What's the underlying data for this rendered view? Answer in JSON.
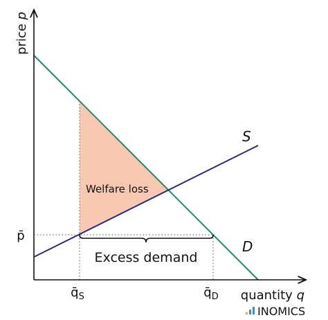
{
  "axes": {
    "y_label": {
      "text": "price",
      "variable": "p"
    },
    "x_label": {
      "text": "quantity",
      "variable": "q"
    }
  },
  "curves": {
    "supply": "S",
    "demand": "D"
  },
  "markers": {
    "price": "p̄",
    "q_s": {
      "symbol": "q̄",
      "subscript": "S"
    },
    "q_d": {
      "symbol": "q̄",
      "subscript": "D"
    }
  },
  "regions": {
    "welfare_loss": "Welfare loss",
    "excess_demand": "Excess demand"
  },
  "logo": "INOMICS"
}
